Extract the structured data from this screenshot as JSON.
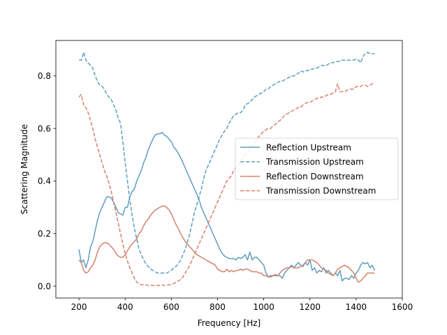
{
  "chart_data": {
    "type": "line",
    "title": "",
    "xlabel": "Frequency [Hz]",
    "ylabel": "Scattering Magnitude",
    "xlim": [
      100,
      1600
    ],
    "ylim": [
      -0.045,
      0.935
    ],
    "xticks": [
      200,
      400,
      600,
      800,
      1000,
      1200,
      1400,
      1600
    ],
    "yticks": [
      0.0,
      0.2,
      0.4,
      0.6,
      0.8
    ],
    "xtick_labels": [
      "200",
      "400",
      "600",
      "800",
      "1000",
      "1200",
      "1400",
      "1600"
    ],
    "ytick_labels": [
      "0.0",
      "0.2",
      "0.4",
      "0.6",
      "0.8"
    ],
    "grid": false,
    "legend_position": "center-right",
    "series": [
      {
        "name": "Reflection Upstream",
        "color": "#5f9ebe",
        "dash": "solid",
        "x": [
          200,
          210,
          220,
          230,
          240,
          250,
          260,
          270,
          280,
          290,
          300,
          310,
          320,
          330,
          340,
          350,
          360,
          370,
          380,
          390,
          400,
          410,
          420,
          430,
          440,
          450,
          460,
          470,
          480,
          490,
          500,
          510,
          520,
          530,
          540,
          550,
          560,
          570,
          580,
          590,
          600,
          610,
          620,
          630,
          640,
          650,
          660,
          670,
          680,
          690,
          700,
          710,
          720,
          730,
          740,
          750,
          760,
          770,
          780,
          790,
          800,
          810,
          820,
          830,
          840,
          850,
          860,
          870,
          880,
          890,
          900,
          910,
          920,
          930,
          940,
          950,
          960,
          970,
          980,
          990,
          1000,
          1010,
          1020,
          1030,
          1040,
          1050,
          1060,
          1070,
          1080,
          1090,
          1100,
          1110,
          1120,
          1130,
          1140,
          1150,
          1160,
          1170,
          1180,
          1190,
          1200,
          1210,
          1220,
          1230,
          1240,
          1250,
          1260,
          1270,
          1280,
          1290,
          1300,
          1310,
          1320,
          1330,
          1340,
          1350,
          1360,
          1370,
          1380,
          1390,
          1400,
          1410,
          1420,
          1430,
          1440,
          1450,
          1460,
          1470,
          1480
        ],
        "values": [
          0.14,
          0.09,
          0.1,
          0.07,
          0.1,
          0.15,
          0.17,
          0.21,
          0.25,
          0.28,
          0.3,
          0.32,
          0.34,
          0.34,
          0.335,
          0.32,
          0.3,
          0.28,
          0.275,
          0.27,
          0.3,
          0.3,
          0.34,
          0.36,
          0.37,
          0.4,
          0.42,
          0.44,
          0.47,
          0.49,
          0.52,
          0.54,
          0.56,
          0.575,
          0.58,
          0.58,
          0.585,
          0.575,
          0.57,
          0.56,
          0.55,
          0.53,
          0.52,
          0.505,
          0.49,
          0.47,
          0.45,
          0.43,
          0.41,
          0.39,
          0.37,
          0.35,
          0.33,
          0.3,
          0.28,
          0.26,
          0.24,
          0.22,
          0.2,
          0.18,
          0.16,
          0.14,
          0.125,
          0.115,
          0.11,
          0.105,
          0.105,
          0.105,
          0.1,
          0.11,
          0.105,
          0.11,
          0.12,
          0.1,
          0.13,
          0.1,
          0.11,
          0.11,
          0.1,
          0.09,
          0.08,
          0.05,
          0.035,
          0.04,
          0.04,
          0.04,
          0.04,
          0.04,
          0.03,
          0.05,
          0.06,
          0.07,
          0.08,
          0.07,
          0.08,
          0.09,
          0.08,
          0.075,
          0.09,
          0.08,
          0.1,
          0.06,
          0.07,
          0.05,
          0.06,
          0.055,
          0.07,
          0.05,
          0.06,
          0.05,
          0.04,
          0.05,
          0.04,
          0.06,
          0.02,
          0.03,
          0.03,
          0.025,
          0.04,
          0.03,
          0.05,
          0.06,
          0.08,
          0.09,
          0.085,
          0.09,
          0.07,
          0.08,
          0.06
        ]
      },
      {
        "name": "Transmission Upstream",
        "color": "#5f9ebe",
        "dash": "dashed",
        "x": [
          200,
          210,
          220,
          230,
          240,
          250,
          260,
          270,
          280,
          290,
          300,
          310,
          320,
          330,
          340,
          350,
          360,
          370,
          380,
          390,
          400,
          410,
          420,
          430,
          440,
          450,
          460,
          470,
          480,
          490,
          500,
          510,
          520,
          530,
          540,
          550,
          560,
          570,
          580,
          590,
          600,
          610,
          620,
          630,
          640,
          650,
          660,
          670,
          680,
          690,
          700,
          710,
          720,
          730,
          740,
          750,
          760,
          770,
          780,
          790,
          800,
          810,
          820,
          830,
          840,
          850,
          860,
          870,
          880,
          890,
          900,
          910,
          920,
          930,
          940,
          950,
          960,
          970,
          980,
          990,
          1000,
          1010,
          1020,
          1030,
          1040,
          1050,
          1060,
          1070,
          1080,
          1090,
          1100,
          1110,
          1120,
          1130,
          1140,
          1150,
          1160,
          1170,
          1180,
          1190,
          1200,
          1210,
          1220,
          1230,
          1240,
          1250,
          1260,
          1270,
          1280,
          1290,
          1300,
          1310,
          1320,
          1330,
          1340,
          1350,
          1360,
          1370,
          1380,
          1390,
          1400,
          1410,
          1420,
          1430,
          1440,
          1450,
          1460,
          1470,
          1480
        ],
        "values": [
          0.86,
          0.86,
          0.89,
          0.86,
          0.85,
          0.84,
          0.83,
          0.8,
          0.78,
          0.765,
          0.76,
          0.75,
          0.73,
          0.72,
          0.71,
          0.69,
          0.67,
          0.64,
          0.62,
          0.55,
          0.47,
          0.4,
          0.33,
          0.27,
          0.22,
          0.18,
          0.14,
          0.12,
          0.1,
          0.085,
          0.075,
          0.065,
          0.06,
          0.055,
          0.05,
          0.05,
          0.05,
          0.05,
          0.05,
          0.055,
          0.06,
          0.07,
          0.075,
          0.085,
          0.1,
          0.12,
          0.14,
          0.17,
          0.2,
          0.24,
          0.28,
          0.31,
          0.34,
          0.37,
          0.41,
          0.44,
          0.46,
          0.48,
          0.5,
          0.52,
          0.54,
          0.56,
          0.575,
          0.59,
          0.6,
          0.62,
          0.635,
          0.65,
          0.655,
          0.66,
          0.66,
          0.67,
          0.69,
          0.695,
          0.7,
          0.71,
          0.72,
          0.725,
          0.73,
          0.735,
          0.74,
          0.75,
          0.75,
          0.76,
          0.765,
          0.77,
          0.775,
          0.78,
          0.78,
          0.785,
          0.79,
          0.795,
          0.8,
          0.8,
          0.805,
          0.81,
          0.82,
          0.815,
          0.82,
          0.82,
          0.825,
          0.825,
          0.83,
          0.83,
          0.835,
          0.84,
          0.84,
          0.84,
          0.845,
          0.85,
          0.85,
          0.855,
          0.855,
          0.855,
          0.86,
          0.86,
          0.86,
          0.86,
          0.86,
          0.86,
          0.865,
          0.86,
          0.85,
          0.875,
          0.885,
          0.89,
          0.885,
          0.885,
          0.885
        ]
      },
      {
        "name": "Reflection Downstream",
        "color": "#d4826d",
        "dash": "solid",
        "x": [
          200,
          210,
          220,
          230,
          240,
          250,
          260,
          270,
          280,
          290,
          300,
          310,
          320,
          330,
          340,
          350,
          360,
          370,
          380,
          390,
          400,
          410,
          420,
          430,
          440,
          450,
          460,
          470,
          480,
          490,
          500,
          510,
          520,
          530,
          540,
          550,
          560,
          570,
          580,
          590,
          600,
          610,
          620,
          630,
          640,
          650,
          660,
          670,
          680,
          690,
          700,
          710,
          720,
          730,
          740,
          750,
          760,
          770,
          780,
          790,
          800,
          810,
          820,
          830,
          840,
          850,
          860,
          870,
          880,
          890,
          900,
          910,
          920,
          930,
          940,
          950,
          960,
          970,
          980,
          990,
          1000,
          1010,
          1020,
          1030,
          1040,
          1050,
          1060,
          1070,
          1080,
          1090,
          1100,
          1110,
          1120,
          1130,
          1140,
          1150,
          1160,
          1170,
          1180,
          1190,
          1200,
          1210,
          1220,
          1230,
          1240,
          1250,
          1260,
          1270,
          1280,
          1290,
          1300,
          1310,
          1320,
          1330,
          1340,
          1350,
          1360,
          1370,
          1380,
          1390,
          1400,
          1410,
          1420,
          1430,
          1440,
          1450,
          1460,
          1470,
          1480
        ],
        "values": [
          0.1,
          0.09,
          0.06,
          0.05,
          0.055,
          0.07,
          0.08,
          0.1,
          0.13,
          0.15,
          0.16,
          0.165,
          0.165,
          0.16,
          0.15,
          0.14,
          0.125,
          0.115,
          0.11,
          0.11,
          0.12,
          0.135,
          0.15,
          0.16,
          0.17,
          0.18,
          0.2,
          0.21,
          0.23,
          0.245,
          0.255,
          0.27,
          0.28,
          0.29,
          0.295,
          0.3,
          0.305,
          0.305,
          0.3,
          0.29,
          0.275,
          0.255,
          0.235,
          0.22,
          0.2,
          0.185,
          0.17,
          0.16,
          0.15,
          0.14,
          0.13,
          0.12,
          0.115,
          0.11,
          0.105,
          0.1,
          0.095,
          0.09,
          0.085,
          0.08,
          0.065,
          0.06,
          0.055,
          0.055,
          0.065,
          0.055,
          0.06,
          0.055,
          0.06,
          0.06,
          0.065,
          0.06,
          0.065,
          0.065,
          0.06,
          0.055,
          0.055,
          0.055,
          0.05,
          0.05,
          0.04,
          0.04,
          0.035,
          0.035,
          0.04,
          0.045,
          0.04,
          0.05,
          0.06,
          0.065,
          0.07,
          0.07,
          0.075,
          0.07,
          0.07,
          0.07,
          0.075,
          0.08,
          0.09,
          0.1,
          0.1,
          0.1,
          0.095,
          0.09,
          0.08,
          0.07,
          0.065,
          0.06,
          0.05,
          0.045,
          0.04,
          0.05,
          0.065,
          0.07,
          0.075,
          0.08,
          0.075,
          0.07,
          0.06,
          0.05,
          0.03,
          0.015,
          0.02,
          0.03,
          0.04,
          0.05,
          0.05,
          0.05,
          0.05
        ]
      },
      {
        "name": "Transmission Downstream",
        "color": "#d4826d",
        "dash": "dashed",
        "x": [
          200,
          210,
          220,
          230,
          240,
          250,
          260,
          270,
          280,
          290,
          300,
          310,
          320,
          330,
          340,
          350,
          360,
          370,
          380,
          390,
          400,
          410,
          420,
          430,
          440,
          450,
          460,
          470,
          480,
          490,
          500,
          510,
          520,
          530,
          540,
          550,
          560,
          570,
          580,
          590,
          600,
          610,
          620,
          630,
          640,
          650,
          660,
          670,
          680,
          690,
          700,
          710,
          720,
          730,
          740,
          750,
          760,
          770,
          780,
          790,
          800,
          810,
          820,
          830,
          840,
          850,
          860,
          870,
          880,
          890,
          900,
          910,
          920,
          930,
          940,
          950,
          960,
          970,
          980,
          990,
          1000,
          1010,
          1020,
          1030,
          1040,
          1050,
          1060,
          1070,
          1080,
          1090,
          1100,
          1110,
          1120,
          1130,
          1140,
          1150,
          1160,
          1170,
          1180,
          1190,
          1200,
          1210,
          1220,
          1230,
          1240,
          1250,
          1260,
          1270,
          1280,
          1290,
          1300,
          1310,
          1320,
          1330,
          1340,
          1350,
          1360,
          1370,
          1380,
          1390,
          1400,
          1410,
          1420,
          1430,
          1440,
          1450,
          1460,
          1470,
          1480
        ],
        "values": [
          0.72,
          0.73,
          0.69,
          0.68,
          0.66,
          0.63,
          0.6,
          0.56,
          0.53,
          0.5,
          0.47,
          0.44,
          0.42,
          0.39,
          0.36,
          0.32,
          0.28,
          0.24,
          0.2,
          0.16,
          0.125,
          0.095,
          0.07,
          0.05,
          0.03,
          0.015,
          0.01,
          0.005,
          0.005,
          0.005,
          0.003,
          0.003,
          0.003,
          0.003,
          0.003,
          0.003,
          0.005,
          0.003,
          0.005,
          0.005,
          0.006,
          0.01,
          0.015,
          0.02,
          0.025,
          0.035,
          0.05,
          0.065,
          0.08,
          0.1,
          0.12,
          0.14,
          0.16,
          0.18,
          0.2,
          0.22,
          0.24,
          0.26,
          0.28,
          0.3,
          0.32,
          0.34,
          0.36,
          0.38,
          0.4,
          0.41,
          0.42,
          0.44,
          0.45,
          0.46,
          0.475,
          0.49,
          0.5,
          0.51,
          0.52,
          0.53,
          0.545,
          0.56,
          0.57,
          0.58,
          0.59,
          0.595,
          0.6,
          0.6,
          0.61,
          0.615,
          0.625,
          0.63,
          0.64,
          0.65,
          0.655,
          0.66,
          0.665,
          0.67,
          0.675,
          0.68,
          0.68,
          0.69,
          0.695,
          0.7,
          0.7,
          0.705,
          0.71,
          0.715,
          0.715,
          0.72,
          0.72,
          0.725,
          0.73,
          0.73,
          0.735,
          0.74,
          0.77,
          0.74,
          0.74,
          0.74,
          0.745,
          0.75,
          0.75,
          0.75,
          0.76,
          0.76,
          0.76,
          0.765,
          0.765,
          0.76,
          0.765,
          0.77,
          0.77
        ]
      }
    ]
  }
}
